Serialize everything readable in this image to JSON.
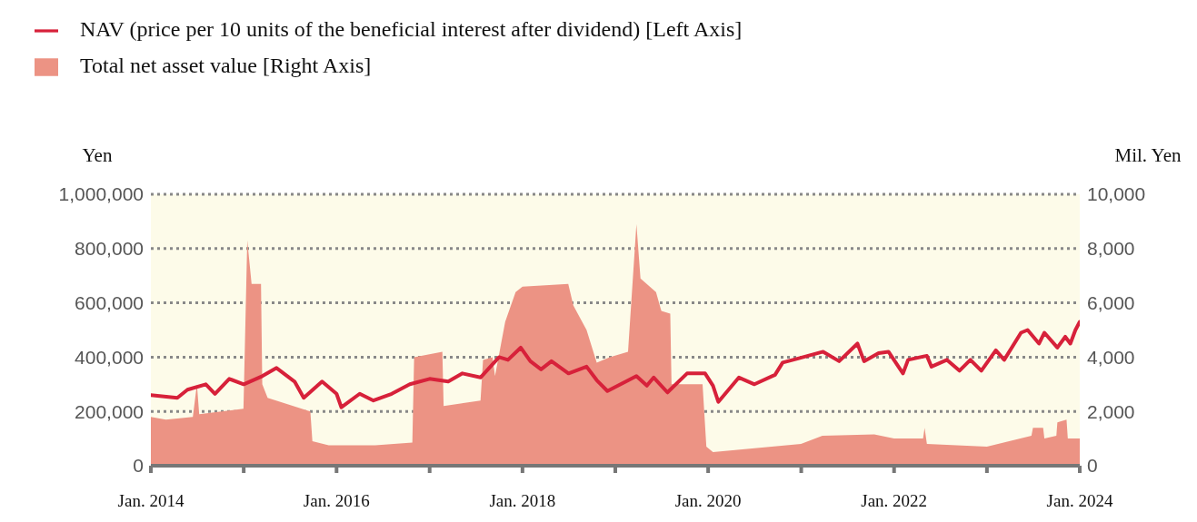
{
  "chart_data": {
    "type": "line",
    "ylabel": "Yen",
    "y2label": "Mil. Yen",
    "legend": "top left",
    "grid": "y",
    "marker": "none",
    "line_style": "solid",
    "xlim": [
      "2014-01",
      "2024-01"
    ],
    "xticks": [
      {
        "value": "2014-01",
        "label": "Jan. 2014"
      },
      {
        "value": "2015-01",
        "label": null
      },
      {
        "value": "2016-01",
        "label": "Jan. 2016"
      },
      {
        "value": "2017-01",
        "label": null
      },
      {
        "value": "2018-01",
        "label": "Jan. 2018"
      },
      {
        "value": "2019-01",
        "label": null
      },
      {
        "value": "2020-01",
        "label": "Jan. 2020"
      },
      {
        "value": "2021-01",
        "label": null
      },
      {
        "value": "2022-01",
        "label": "Jan. 2022"
      },
      {
        "value": "2023-01",
        "label": null
      },
      {
        "value": "2024-01",
        "label": "Jan. 2024"
      }
    ],
    "ylim": [
      0,
      1000000
    ],
    "yticks": [
      {
        "value": 0,
        "label": "0"
      },
      {
        "value": 200000,
        "label": "200,000"
      },
      {
        "value": 400000,
        "label": "400,000"
      },
      {
        "value": 600000,
        "label": "600,000"
      },
      {
        "value": 800000,
        "label": "800,000"
      },
      {
        "value": 1000000,
        "label": "1,000,000"
      }
    ],
    "y2lim": [
      0,
      10000
    ],
    "y2ticks": [
      {
        "value": 0,
        "label": "0"
      },
      {
        "value": 2000,
        "label": "2,000"
      },
      {
        "value": 4000,
        "label": "4,000"
      },
      {
        "value": 6000,
        "label": "6,000"
      },
      {
        "value": 8000,
        "label": "8,000"
      },
      {
        "value": 10000,
        "label": "10,000"
      }
    ],
    "series": [
      {
        "name": "NAV (price per 10 units of the beneficial interest after dividend) [Left Axis]",
        "type": "line",
        "color": "#d7213a",
        "x": [
          "2014-01-01",
          "2014-04-15",
          "2014-05-25",
          "2014-08-05",
          "2014-09-10",
          "2014-11-05",
          "2015-01-01",
          "2015-03-15",
          "2015-05-10",
          "2015-07-20",
          "2015-08-25",
          "2015-11-05",
          "2016-01-01",
          "2016-01-20",
          "2016-04-01",
          "2016-05-25",
          "2016-08-05",
          "2016-10-15",
          "2017-01-01",
          "2017-03-15",
          "2017-05-10",
          "2017-07-20",
          "2017-10-01",
          "2017-11-05",
          "2017-12-25",
          "2018-02-01",
          "2018-03-15",
          "2018-04-25",
          "2018-07-01",
          "2018-09-10",
          "2018-10-20",
          "2018-12-01",
          "2019-03-25",
          "2019-05-05",
          "2019-06-01",
          "2019-07-25",
          "2019-10-10",
          "2019-12-20",
          "2020-01-20",
          "2020-02-10",
          "2020-05-01",
          "2020-07-01",
          "2020-09-20",
          "2020-10-20",
          "2020-12-20",
          "2021-03-28",
          "2021-05-30",
          "2021-08-10",
          "2021-09-05",
          "2021-11-01",
          "2021-12-10",
          "2022-02-05",
          "2022-02-25",
          "2022-05-10",
          "2022-05-28",
          "2022-07-28",
          "2022-09-15",
          "2022-10-28",
          "2022-12-10",
          "2023-02-05",
          "2023-03-10",
          "2023-05-15",
          "2023-06-10",
          "2023-07-25",
          "2023-08-15",
          "2023-10-05",
          "2023-11-05",
          "2023-11-25",
          "2023-12-15",
          "2024-01-01"
        ],
        "values": [
          260000,
          250000,
          280000,
          300000,
          265000,
          320000,
          300000,
          330000,
          360000,
          310000,
          250000,
          310000,
          265000,
          215000,
          265000,
          240000,
          265000,
          300000,
          320000,
          310000,
          340000,
          325000,
          400000,
          390000,
          435000,
          385000,
          355000,
          385000,
          340000,
          365000,
          315000,
          275000,
          330000,
          295000,
          325000,
          270000,
          340000,
          340000,
          295000,
          235000,
          325000,
          300000,
          335000,
          380000,
          395000,
          420000,
          385000,
          450000,
          385000,
          415000,
          420000,
          340000,
          390000,
          405000,
          365000,
          390000,
          350000,
          390000,
          350000,
          425000,
          390000,
          490000,
          500000,
          450000,
          490000,
          435000,
          475000,
          450000,
          500000,
          530000
        ]
      },
      {
        "name": "Total net asset value [Right Axis]",
        "type": "area",
        "axis": "y2",
        "color": "#ec9384",
        "x": [
          "2014-01-01",
          "2014-03-01",
          "2014-06-15",
          "2014-07-01",
          "2014-07-10",
          "2014-12-31",
          "2015-01-15",
          "2015-02-01",
          "2015-03-10",
          "2015-03-15",
          "2015-04-05",
          "2015-09-20",
          "2015-09-28",
          "2015-12-01",
          "2016-06-01",
          "2016-10-25",
          "2016-11-01",
          "2017-02-20",
          "2017-02-25",
          "2017-07-20",
          "2017-07-30",
          "2017-09-05",
          "2017-09-15",
          "2017-10-25",
          "2017-12-05",
          "2018-01-01",
          "2018-06-30",
          "2018-07-20",
          "2018-09-10",
          "2018-10-20",
          "2018-12-10",
          "2019-02-20",
          "2019-03-25",
          "2019-04-10",
          "2019-06-10",
          "2019-07-01",
          "2019-08-05",
          "2019-08-10",
          "2019-12-10",
          "2019-12-25",
          "2020-01-20",
          "2020-12-31",
          "2021-03-25",
          "2021-10-15",
          "2022-01-01",
          "2022-04-25",
          "2022-05-01",
          "2022-05-10",
          "2023-01-01",
          "2023-06-25",
          "2023-07-01",
          "2023-08-10",
          "2023-08-15",
          "2023-10-01",
          "2023-10-05",
          "2023-11-10",
          "2023-11-15",
          "2024-01-01"
        ],
        "values": [
          1800,
          1700,
          1800,
          3000,
          1900,
          2100,
          8300,
          6700,
          6700,
          3000,
          2500,
          2000,
          900,
          750,
          750,
          850,
          4000,
          4200,
          2200,
          2400,
          3900,
          4000,
          3300,
          5300,
          6400,
          6600,
          6700,
          5900,
          5000,
          3800,
          4000,
          4200,
          8900,
          6900,
          6400,
          5700,
          5600,
          3000,
          3000,
          700,
          500,
          800,
          1100,
          1150,
          1000,
          1000,
          1400,
          800,
          700,
          1100,
          1400,
          1400,
          1000,
          1100,
          1600,
          1700,
          1000,
          1000
        ]
      }
    ]
  }
}
